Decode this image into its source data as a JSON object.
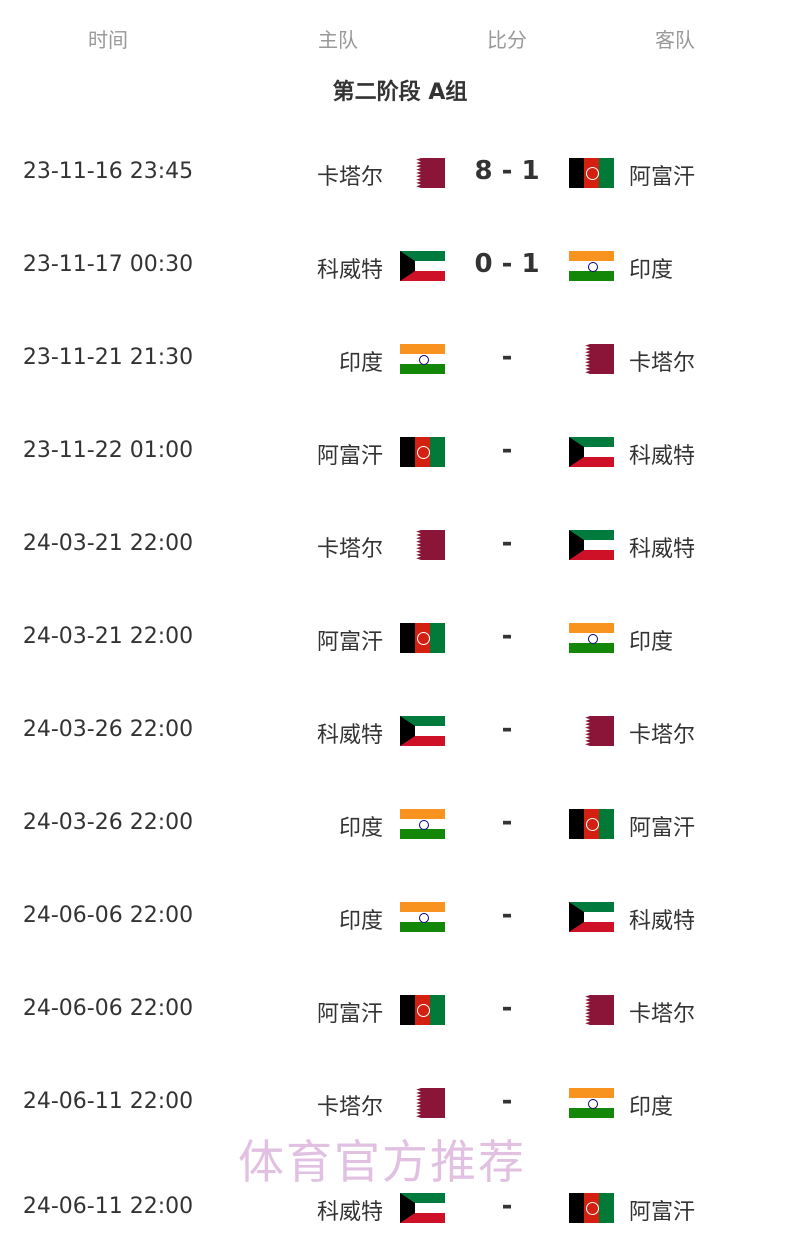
{
  "headers": {
    "time": "时间",
    "home": "主队",
    "score": "比分",
    "away": "客队"
  },
  "title": "第二阶段 A组",
  "matches": [
    {
      "time": "23-11-16 23:45",
      "home": "卡塔尔",
      "home_flag": "qatar",
      "score": "8 - 1",
      "away": "阿富汗",
      "away_flag": "afg"
    },
    {
      "time": "23-11-17 00:30",
      "home": "科威特",
      "home_flag": "kuwait",
      "score": "0 - 1",
      "away": "印度",
      "away_flag": "india"
    },
    {
      "time": "23-11-21 21:30",
      "home": "印度",
      "home_flag": "india",
      "score": "-",
      "away": "卡塔尔",
      "away_flag": "qatar"
    },
    {
      "time": "23-11-22 01:00",
      "home": "阿富汗",
      "home_flag": "afg",
      "score": "-",
      "away": "科威特",
      "away_flag": "kuwait"
    },
    {
      "time": "24-03-21 22:00",
      "home": "卡塔尔",
      "home_flag": "qatar",
      "score": "-",
      "away": "科威特",
      "away_flag": "kuwait"
    },
    {
      "time": "24-03-21 22:00",
      "home": "阿富汗",
      "home_flag": "afg",
      "score": "-",
      "away": "印度",
      "away_flag": "india"
    },
    {
      "time": "24-03-26 22:00",
      "home": "科威特",
      "home_flag": "kuwait",
      "score": "-",
      "away": "卡塔尔",
      "away_flag": "qatar"
    },
    {
      "time": "24-03-26 22:00",
      "home": "印度",
      "home_flag": "india",
      "score": "-",
      "away": "阿富汗",
      "away_flag": "afg"
    },
    {
      "time": "24-06-06 22:00",
      "home": "印度",
      "home_flag": "india",
      "score": "-",
      "away": "科威特",
      "away_flag": "kuwait"
    },
    {
      "time": "24-06-06 22:00",
      "home": "阿富汗",
      "home_flag": "afg",
      "score": "-",
      "away": "卡塔尔",
      "away_flag": "qatar"
    },
    {
      "time": "24-06-11 22:00",
      "home": "卡塔尔",
      "home_flag": "qatar",
      "score": "-",
      "away": "印度",
      "away_flag": "india"
    },
    {
      "time": "24-06-11 22:00",
      "home": "科威特",
      "home_flag": "kuwait",
      "score": "-",
      "away": "阿富汗",
      "away_flag": "afg"
    }
  ],
  "watermark": "体育官方推荐"
}
